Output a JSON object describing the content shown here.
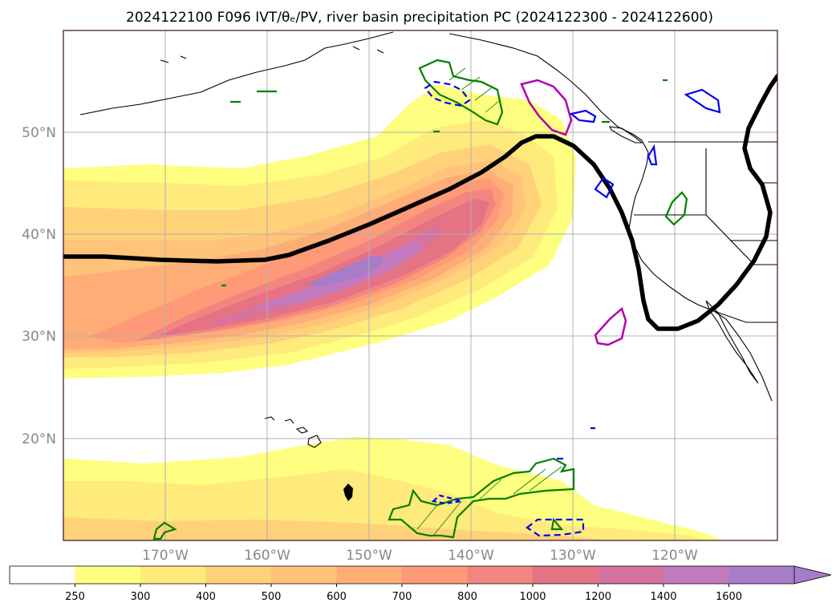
{
  "figure": {
    "title": "2024122100 F096 IVT/θₑ/PV, river basin precipitation PC (2024122300 - 2024122600)"
  },
  "map": {
    "lon_range": [
      -180,
      -110
    ],
    "lat_range": [
      10,
      60
    ],
    "projection": "plate-carree",
    "grid": true,
    "lon_ticks": [
      "170°W",
      "160°W",
      "150°W",
      "140°W",
      "130°W",
      "120°W"
    ],
    "lat_ticks": [
      "50°N",
      "40°N",
      "30°N",
      "20°N"
    ]
  },
  "colorbar": {
    "ticks": [
      "250",
      "300",
      "400",
      "500",
      "600",
      "700",
      "800",
      "1000",
      "1200",
      "1400",
      "1600"
    ],
    "extend": "max",
    "colors": [
      "#ffffff",
      "#fefe80",
      "#ffea7c",
      "#ffd27a",
      "#ffc37a",
      "#ffad77",
      "#ff9a78",
      "#f38580",
      "#e57384",
      "#d673a0",
      "#c27bbf",
      "#a77cc8"
    ]
  },
  "legend_colors": {
    "precip_pc_positive": "#008000",
    "precip_pc_negative": "#0000ee",
    "pv_contour": "#b000b0",
    "theta_e_contour": "#000000"
  }
}
